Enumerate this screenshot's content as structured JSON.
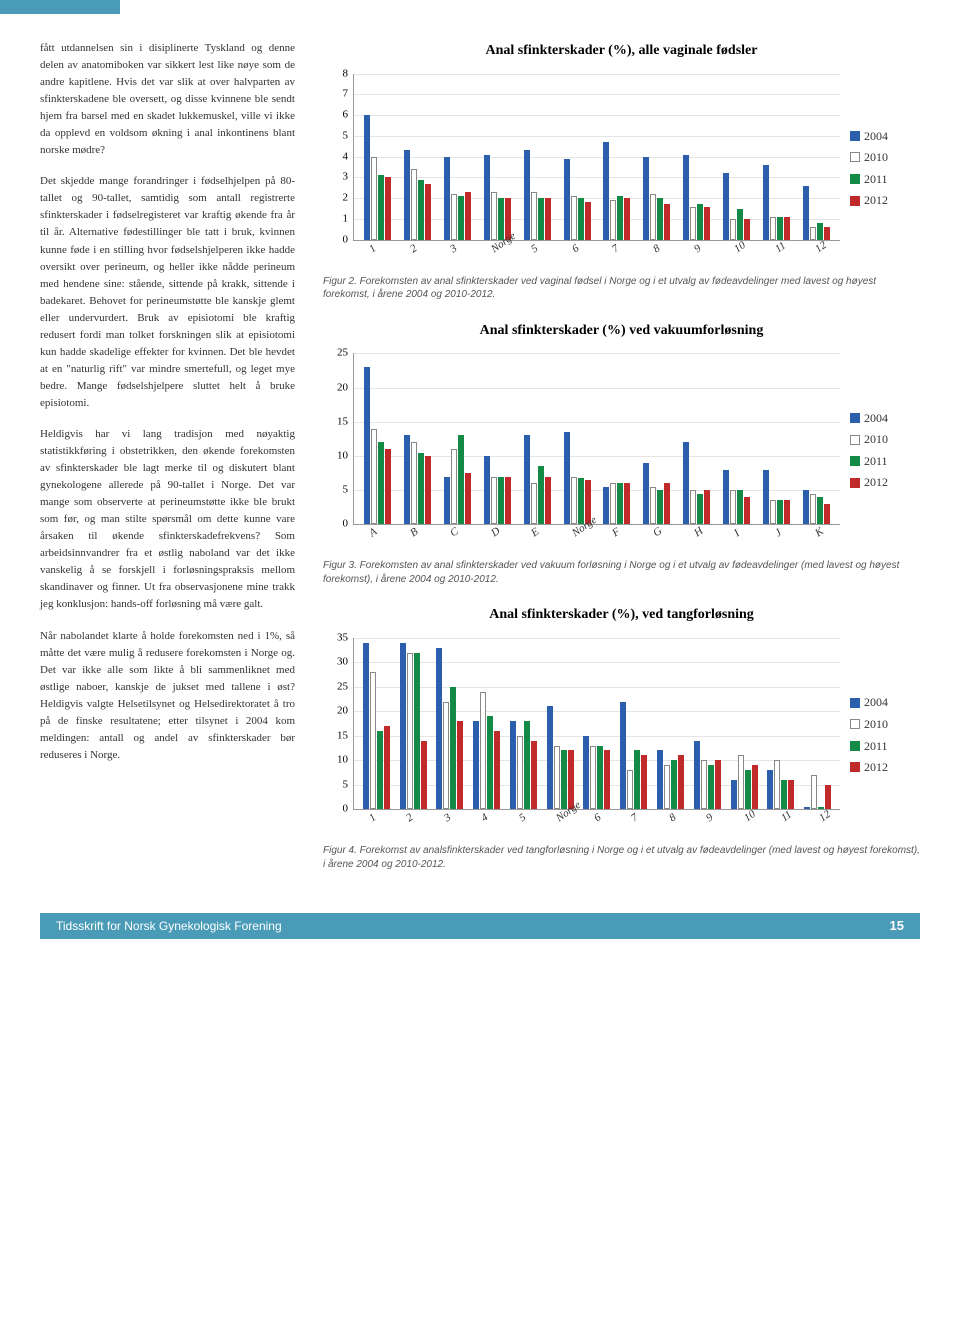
{
  "paragraphs": [
    "fått utdannelsen sin i disiplinerte Tyskland og denne delen av anatomiboken var sikkert lest like nøye som de andre kapitlene. Hvis det var slik at over halvparten av sfinkterskadene ble oversett, og disse kvinnene ble sendt hjem fra barsel med en skadet lukkemuskel, ville vi ikke da opplevd en voldsom økning i anal inkontinens blant norske mødre?",
    "Det skjedde mange forandringer i fødselhjelpen på 80-tallet og 90-tallet, samtidig som antall registrerte sfinkterskader i fødselregisteret var kraftig økende fra år til år. Alternative fødestillinger ble tatt i bruk, kvinnen kunne føde i en stilling hvor fødselshjelperen ikke hadde oversikt over perineum, og heller ikke nådde perineum med hendene sine: stående, sittende på krakk, sittende i badekaret. Behovet for perineumstøtte ble kanskje glemt eller undervurdert. Bruk av episiotomi ble kraftig redusert fordi man tolket forskningen slik at episiotomi kun hadde skadelige effekter for kvinnen. Det ble hevdet at en \"naturlig rift\" var mindre smertefull, og leget mye bedre. Mange fødselshjelpere sluttet helt å bruke episiotomi.",
    "Heldigvis har vi lang tradisjon med nøyaktig statistikkføring i obstetrikken, den økende forekomsten av sfinkterskader ble lagt merke til og diskutert blant gynekologene allerede på 90-tallet i Norge. Det var mange som observerte at perineumstøtte ikke ble brukt som før, og man stilte spørsmål om dette kunne vare årsaken til økende sfinkterskadefrekvens? Som arbeidsinnvandrer fra et østlig naboland var det ikke vanskelig å se forskjell i forløsningspraksis mellom skandinaver og finner. Ut fra observasjonene mine trakk jeg konklusjon: hands-off forløsning må være galt.",
    "Når nabolandet klarte å holde forekomsten ned i 1%, så måtte det være mulig å redusere forekomsten i Norge og. Det var ikke alle som likte å bli sammenliknet med østlige naboer, kanskje de jukset med tallene i øst? Heldigvis valgte Helsetilsynet og Helsedirektoratet å tro på de finske resultatene; etter tilsynet i 2004 kom meldingen: antall og andel av sfinkterskader bør reduseres i Norge."
  ],
  "legend": [
    {
      "label": "2004",
      "color": "#2b5fae",
      "fill": "#2b5fae"
    },
    {
      "label": "2010",
      "color": "#888",
      "fill": "#ffffff"
    },
    {
      "label": "2011",
      "color": "#138a45",
      "fill": "#138a45"
    },
    {
      "label": "2012",
      "color": "#c12a2a",
      "fill": "#c12a2a"
    }
  ],
  "charts": [
    {
      "title": "Anal sfinkterskader (%), alle vaginale fødsler",
      "ymax": 8,
      "ystep": 1,
      "labels": [
        "1",
        "2",
        "3",
        "Norge",
        "5",
        "6",
        "7",
        "8",
        "9",
        "10",
        "11",
        "12"
      ],
      "series": [
        [
          6.0,
          4.3,
          4.0,
          4.1,
          4.3,
          3.9,
          4.7,
          4.0,
          4.1,
          3.2,
          3.6,
          2.6
        ],
        [
          4.0,
          3.4,
          2.2,
          2.3,
          2.3,
          2.1,
          1.9,
          2.2,
          1.6,
          1.0,
          1.1,
          0.6
        ],
        [
          3.1,
          2.9,
          2.1,
          2.0,
          2.0,
          2.0,
          2.1,
          2.0,
          1.7,
          1.5,
          1.1,
          0.8
        ],
        [
          3.0,
          2.7,
          2.3,
          2.0,
          2.0,
          1.8,
          2.0,
          1.7,
          1.6,
          1.0,
          1.1,
          0.6
        ]
      ],
      "caption": "Figur 2. Forekomsten av anal sfinkterskader ved vaginal fødsel i Norge og i et utvalg av fødeavdelinger med lavest og høyest forekomst, i årene 2004 og 2010-2012."
    },
    {
      "title": "Anal sfinkterskader (%) ved vakuumforløsning",
      "ymax": 25,
      "ystep": 5,
      "labels": [
        "A",
        "B",
        "C",
        "D",
        "E",
        "Norge",
        "F",
        "G",
        "H",
        "I",
        "J",
        "K"
      ],
      "series": [
        [
          23.0,
          13.0,
          7.0,
          10.0,
          13.0,
          13.5,
          5.5,
          9.0,
          12.0,
          8.0,
          8.0,
          5.0
        ],
        [
          14.0,
          12.0,
          11.0,
          7.0,
          6.0,
          7.0,
          6.0,
          5.5,
          5.0,
          5.0,
          3.5,
          4.5
        ],
        [
          12.0,
          10.5,
          13.0,
          7.0,
          8.5,
          6.8,
          6.0,
          5.0,
          4.5,
          5.0,
          3.5,
          4.0
        ],
        [
          11.0,
          10.0,
          7.5,
          7.0,
          7.0,
          6.5,
          6.0,
          6.0,
          5.0,
          4.0,
          3.5,
          3.0
        ]
      ],
      "caption": "Figur 3. Forekomsten av anal sfinkterskader ved vakuum forløsning i Norge og i et utvalg av fødeavdelinger (med lavest og høyest forekomst), i årene 2004 og 2010-2012."
    },
    {
      "title": "Anal sfinkterskader (%), ved tangforløsning",
      "ymax": 35,
      "ystep": 5,
      "labels": [
        "1",
        "2",
        "3",
        "4",
        "5",
        "Norge",
        "6",
        "7",
        "8",
        "9",
        "10",
        "11",
        "12"
      ],
      "series": [
        [
          34,
          34,
          33,
          18,
          18,
          21,
          15,
          22,
          12,
          14,
          6,
          8,
          0
        ],
        [
          28,
          32,
          22,
          24,
          15,
          13,
          13,
          8,
          9,
          10,
          11,
          10,
          7
        ],
        [
          16,
          32,
          25,
          19,
          18,
          12,
          13,
          12,
          10,
          9,
          8,
          6,
          0
        ],
        [
          17,
          14,
          18,
          16,
          14,
          12,
          12,
          11,
          11,
          10,
          9,
          6,
          5
        ]
      ],
      "caption": "Figur 4. Forekomst av analsfinkterskader ved tangforløsning i Norge og i et utvalg av fødeavdelinger (med lavest og høyest forekomst), i årene 2004 og 2010-2012."
    }
  ],
  "footer": {
    "journal": "Tidsskrift for Norsk Gynekologisk Forening",
    "page": "15"
  }
}
